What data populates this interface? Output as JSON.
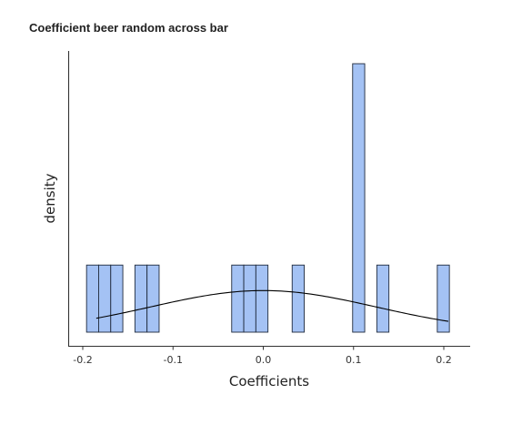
{
  "chart_data": {
    "type": "histogram",
    "title": "Coefficient beer random across bar",
    "xlabel": "Coefficients",
    "ylabel": "density",
    "xlim": [
      -0.215,
      0.23
    ],
    "xticks": [
      -0.2,
      -0.1,
      0.0,
      0.1,
      0.2
    ],
    "xtick_labels": [
      "-0.2",
      "-0.1",
      "0.0",
      "0.1",
      "0.2"
    ],
    "bin_width": 0.0134,
    "bar_color": "#a4c2f4",
    "bar_edge_color": "#1f2a3c",
    "bins": [
      {
        "start": -0.1958,
        "end": -0.1824,
        "count": 1
      },
      {
        "start": -0.1824,
        "end": -0.169,
        "count": 1
      },
      {
        "start": -0.169,
        "end": -0.1556,
        "count": 1
      },
      {
        "start": -0.1422,
        "end": -0.1288,
        "count": 1
      },
      {
        "start": -0.1288,
        "end": -0.1154,
        "count": 1
      },
      {
        "start": -0.035,
        "end": -0.0216,
        "count": 1
      },
      {
        "start": -0.0216,
        "end": -0.0082,
        "count": 1
      },
      {
        "start": -0.0082,
        "end": 0.0052,
        "count": 1
      },
      {
        "start": 0.032,
        "end": 0.0454,
        "count": 1
      },
      {
        "start": 0.099,
        "end": 0.1124,
        "count": 4
      },
      {
        "start": 0.1258,
        "end": 0.1392,
        "count": 1
      },
      {
        "start": 0.1928,
        "end": 0.2062,
        "count": 1
      }
    ],
    "max_count": 4,
    "normal_curve": {
      "mean": 0.0,
      "sd": 0.125,
      "x_range": [
        -0.185,
        0.205
      ],
      "peak_in_count_units": 0.62
    },
    "grid": false,
    "legend": "none"
  }
}
